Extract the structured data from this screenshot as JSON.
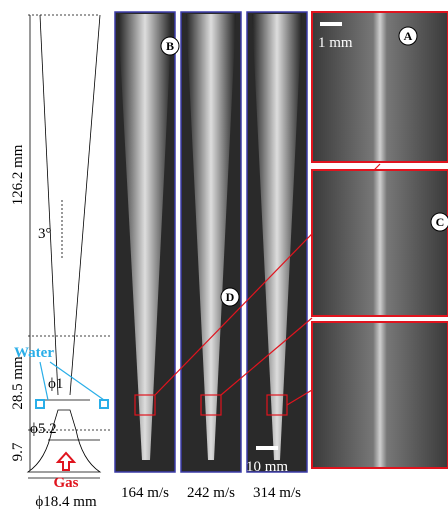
{
  "figure": {
    "dimensions": {
      "length": "126.2 mm",
      "angle": "3°",
      "inlet_diameter": "ϕ1",
      "section_length": "28.5 mm",
      "diameter": "ϕ5.2",
      "base_length": "9.7",
      "base_diameter": "ϕ18.4 mm"
    },
    "inputs": {
      "water": "Water",
      "gas": "Gas"
    },
    "panels": [
      {
        "velocity": "164 m/s"
      },
      {
        "velocity": "242 m/s"
      },
      {
        "velocity": "314 m/s"
      }
    ],
    "scale_bars": {
      "zoom": "1 mm",
      "overview": "10 mm"
    },
    "markers": [
      "A",
      "B",
      "C",
      "D"
    ]
  }
}
